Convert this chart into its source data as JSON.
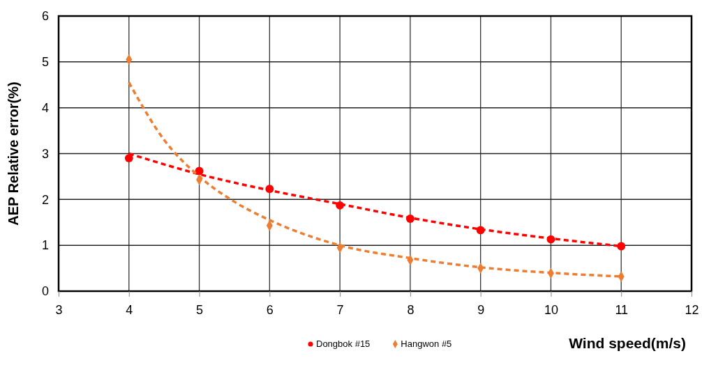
{
  "chart_data": {
    "type": "scatter",
    "xlabel": "Wind speed(m/s)",
    "ylabel": "AEP Relative error(%)",
    "xlim": [
      3,
      12
    ],
    "xticks": [
      3,
      4,
      5,
      6,
      7,
      8,
      9,
      10,
      11,
      12
    ],
    "ylim": [
      0,
      6
    ],
    "yticks": [
      0,
      1,
      2,
      3,
      4,
      5,
      6
    ],
    "grid": true,
    "legend": "bottom",
    "series": [
      {
        "name": "Dongbok #15",
        "marker": "circle",
        "color": "#ff0000",
        "x": [
          4,
          5,
          6,
          7,
          8,
          9,
          10,
          11
        ],
        "values": [
          2.9,
          2.62,
          2.23,
          1.87,
          1.58,
          1.33,
          1.13,
          0.98
        ]
      },
      {
        "name": "Hangwon #5",
        "marker": "diamond",
        "color": "#ed7d31",
        "x": [
          4,
          5,
          6,
          7,
          8,
          9,
          10,
          11
        ],
        "values": [
          5.05,
          2.43,
          1.43,
          0.95,
          0.68,
          0.5,
          0.39,
          0.32
        ]
      },
      {
        "type": "line",
        "line_style": "dashed",
        "marker": "none",
        "color": "#ff0000",
        "x": [
          4,
          5,
          6,
          7,
          8,
          9,
          10,
          11
        ],
        "values": [
          3.0,
          2.55,
          2.2,
          1.9,
          1.6,
          1.35,
          1.15,
          0.98
        ]
      },
      {
        "type": "line",
        "line_style": "dashed",
        "marker": "none",
        "color": "#ed7d31",
        "x": [
          4,
          4.5,
          5,
          5.5,
          6,
          7,
          8,
          9,
          10,
          11
        ],
        "values": [
          4.55,
          3.3,
          2.5,
          1.95,
          1.55,
          1.0,
          0.72,
          0.52,
          0.4,
          0.32
        ]
      }
    ]
  }
}
